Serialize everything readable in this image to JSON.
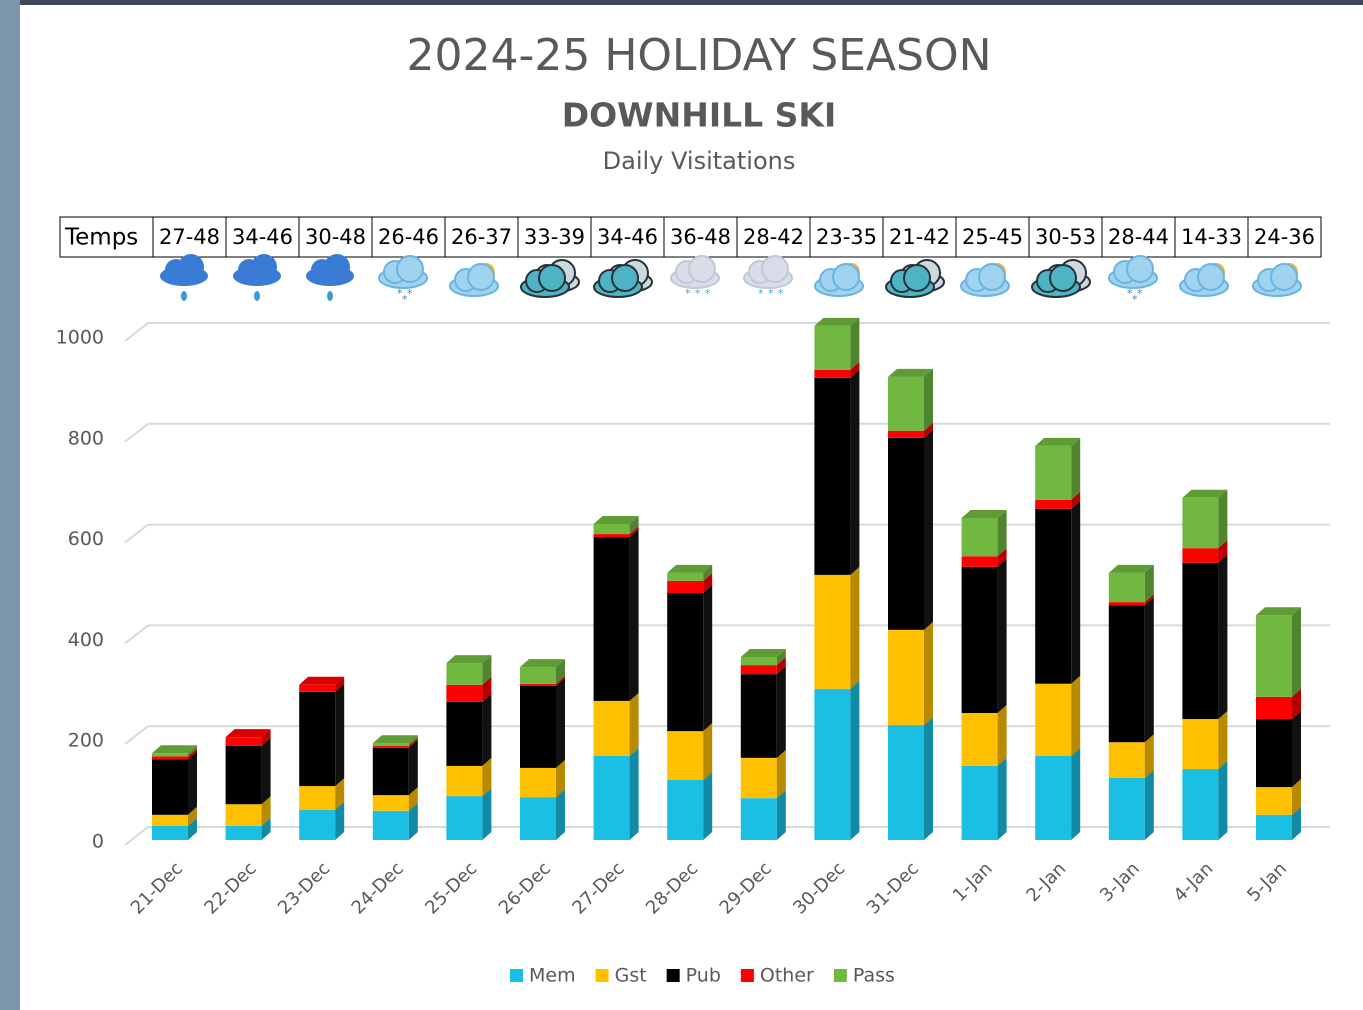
{
  "chart_data": {
    "type": "stacked_bar_3d",
    "title": "2024-25 HOLIDAY SEASON",
    "subtitle": "DOWNHILL SKI",
    "chart_title": "Daily Visitations",
    "temps_label": "Temps",
    "temps": [
      "27-48",
      "34-46",
      "30-48",
      "26-46",
      "26-37",
      "33-39",
      "34-46",
      "36-48",
      "28-42",
      "23-35",
      "21-42",
      "25-45",
      "30-53",
      "28-44",
      "14-33",
      "24-36"
    ],
    "categories": [
      "21-Dec",
      "22-Dec",
      "23-Dec",
      "24-Dec",
      "25-Dec",
      "26-Dec",
      "27-Dec",
      "28-Dec",
      "29-Dec",
      "30-Dec",
      "31-Dec",
      "1-Jan",
      "2-Jan",
      "3-Jan",
      "4-Jan",
      "5-Jan"
    ],
    "series": [
      {
        "name": "Mem",
        "color": "#1bbfe3",
        "values": [
          28,
          28,
          60,
          58,
          87,
          85,
          167,
          119,
          83,
          300,
          228,
          147,
          167,
          123,
          141,
          50
        ]
      },
      {
        "name": "Gst",
        "color": "#ffc000",
        "values": [
          22,
          43,
          47,
          31,
          60,
          58,
          109,
          97,
          80,
          226,
          189,
          105,
          143,
          71,
          99,
          55
        ]
      },
      {
        "name": "Pub",
        "color": "#000000",
        "values": [
          110,
          116,
          187,
          94,
          127,
          163,
          325,
          274,
          166,
          391,
          381,
          290,
          347,
          272,
          310,
          135
        ]
      },
      {
        "name": "Other",
        "color": "#ff0000",
        "values": [
          6,
          17,
          14,
          4,
          34,
          4,
          6,
          24,
          18,
          16,
          14,
          21,
          18,
          6,
          29,
          44
        ]
      },
      {
        "name": "Pass",
        "color": "#70b840",
        "values": [
          6,
          0,
          0,
          5,
          43,
          33,
          20,
          16,
          16,
          87,
          107,
          76,
          107,
          58,
          100,
          162
        ]
      }
    ],
    "ylim": [
      0,
      1000
    ],
    "yticks": [
      0,
      200,
      400,
      600,
      800,
      1000
    ],
    "grid": true,
    "legend": "bottom"
  }
}
